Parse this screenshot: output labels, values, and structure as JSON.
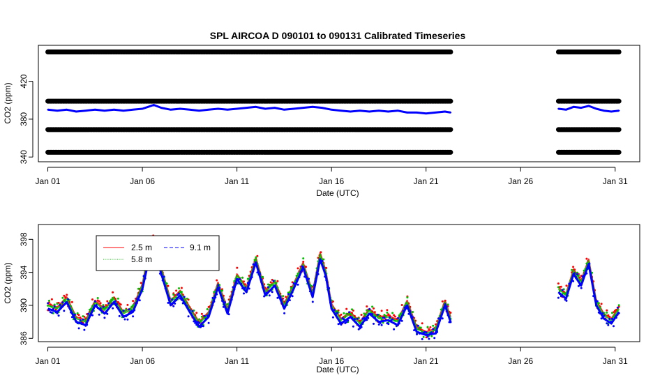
{
  "colors": {
    "background": "#ffffff",
    "ref_points": "#000000",
    "series_2_5m": "#ff0000",
    "series_5_8m": "#00c000",
    "series_9_1m": "#0000ff"
  },
  "chart_data": [
    {
      "type": "scatter",
      "title": "SPL   AIRCOA  D    090101  to  090131   Calibrated Timeseries",
      "xlabel": "Date (UTC)",
      "ylabel": "CO2 (ppm)",
      "x_ticks": [
        "Jan 01",
        "Jan 06",
        "Jan 11",
        "Jan 16",
        "Jan 21",
        "Jan 26",
        "Jan 31"
      ],
      "x_tick_values": [
        1,
        6,
        11,
        16,
        21,
        26,
        31
      ],
      "y_ticks": [
        "340",
        "380",
        "420"
      ],
      "y_tick_values": [
        340,
        380,
        420
      ],
      "xlim": [
        0.5,
        32.3
      ],
      "ylim": [
        335,
        458
      ],
      "legend": false,
      "grid": false,
      "reference_gases": {
        "values": [
          345,
          369,
          399,
          451
        ],
        "segments": [
          [
            1.0,
            22.3
          ],
          [
            28.0,
            31.2
          ]
        ]
      },
      "series": [
        {
          "color": "#0000ff",
          "segments": [
            {
              "x": [
                1.0,
                1.5,
                2.0,
                2.5,
                3.0,
                3.5,
                4.0,
                4.5,
                5.0,
                5.5,
                6.0,
                6.3,
                6.6,
                7.0,
                7.5,
                8.0,
                8.5,
                9.0,
                9.5,
                10.0,
                10.5,
                11.0,
                11.5,
                12.0,
                12.5,
                13.0,
                13.5,
                14.0,
                14.5,
                15.0,
                15.5,
                16.0,
                16.5,
                17.0,
                17.5,
                18.0,
                18.5,
                19.0,
                19.5,
                20.0,
                20.5,
                21.0,
                21.5,
                22.0,
                22.3
              ],
              "y": [
                390,
                389,
                390,
                388,
                389,
                390,
                389,
                390,
                389,
                390,
                391,
                393,
                395,
                392,
                390,
                391,
                390,
                389,
                390,
                391,
                390,
                391,
                392,
                393,
                391,
                392,
                390,
                391,
                392,
                393,
                392,
                390,
                389,
                388,
                389,
                388,
                389,
                388,
                389,
                387,
                387,
                386,
                387,
                388,
                387
              ]
            },
            {
              "x": [
                28.0,
                28.4,
                28.8,
                29.2,
                29.6,
                30.0,
                30.4,
                30.8,
                31.2
              ],
              "y": [
                391,
                390,
                393,
                392,
                394,
                391,
                389,
                388,
                389
              ]
            }
          ]
        }
      ]
    },
    {
      "type": "scatter",
      "title": "",
      "xlabel": "Date (UTC)",
      "ylabel": "CO2 (ppm)",
      "x_ticks": [
        "Jan 01",
        "Jan 06",
        "Jan 11",
        "Jan 16",
        "Jan 21",
        "Jan 26",
        "Jan 31"
      ],
      "x_tick_values": [
        1,
        6,
        11,
        16,
        21,
        26,
        31
      ],
      "y_ticks": [
        "386",
        "390",
        "394",
        "398"
      ],
      "y_tick_values": [
        386,
        390,
        394,
        398
      ],
      "xlim": [
        0.5,
        32.3
      ],
      "ylim": [
        385.6,
        399.8
      ],
      "legend": "top-left",
      "grid": false,
      "series": [
        {
          "name": "2.5 m",
          "color": "#ff0000",
          "x": [
            1.0,
            1.5,
            2.0,
            2.5,
            3.0,
            3.5,
            4.0,
            4.5,
            5.0,
            5.5,
            6.0,
            6.5,
            6.9,
            7.5,
            8.0,
            8.5,
            9.0,
            9.5,
            10.0,
            10.5,
            11.0,
            11.5,
            12.0,
            12.5,
            13.0,
            13.5,
            14.0,
            14.5,
            15.0,
            15.4,
            15.7,
            16.0,
            16.5,
            17.0,
            17.5,
            18.0,
            18.5,
            19.0,
            19.5,
            20.0,
            20.5,
            21.0,
            21.5,
            22.0,
            22.3,
            28.0,
            28.4,
            28.8,
            29.2,
            29.6,
            30.0,
            30.4,
            30.8,
            31.2
          ],
          "y": [
            390.2,
            389.8,
            391.0,
            388.6,
            388.2,
            390.6,
            389.6,
            391.0,
            389.2,
            389.8,
            392.6,
            398.4,
            395.4,
            390.6,
            391.8,
            389.8,
            388.0,
            389.2,
            392.8,
            389.6,
            393.8,
            392.2,
            395.8,
            391.8,
            393.0,
            390.2,
            392.6,
            395.2,
            391.6,
            396.4,
            394.2,
            390.2,
            388.4,
            389.2,
            388.0,
            389.6,
            388.6,
            388.8,
            388.2,
            390.6,
            387.4,
            386.8,
            387.2,
            390.6,
            388.6,
            392.2,
            391.4,
            394.4,
            393.0,
            395.6,
            390.6,
            389.0,
            388.4,
            389.8
          ]
        },
        {
          "name": "5.8 m",
          "color": "#00c000",
          "x": [
            1.0,
            1.5,
            2.0,
            2.5,
            3.0,
            3.5,
            4.0,
            4.5,
            5.0,
            5.5,
            6.0,
            6.5,
            6.9,
            7.5,
            8.0,
            8.5,
            9.0,
            9.5,
            10.0,
            10.5,
            11.0,
            11.5,
            12.0,
            12.5,
            13.0,
            13.5,
            14.0,
            14.5,
            15.0,
            15.4,
            15.7,
            16.0,
            16.5,
            17.0,
            17.5,
            18.0,
            18.5,
            19.0,
            19.5,
            20.0,
            20.5,
            21.0,
            21.5,
            22.0,
            22.3,
            28.0,
            28.4,
            28.8,
            29.2,
            29.6,
            30.0,
            30.4,
            30.8,
            31.2
          ],
          "y": [
            390.0,
            389.6,
            390.8,
            388.4,
            388.0,
            390.4,
            389.4,
            390.8,
            389.0,
            389.6,
            392.4,
            398.0,
            395.2,
            390.4,
            391.6,
            389.6,
            387.8,
            389.0,
            392.6,
            389.4,
            393.6,
            392.0,
            395.6,
            391.6,
            392.8,
            390.0,
            392.4,
            395.0,
            391.4,
            396.2,
            394.0,
            390.0,
            388.2,
            389.0,
            387.8,
            389.4,
            388.4,
            388.6,
            388.0,
            390.4,
            387.2,
            386.6,
            387.0,
            390.4,
            388.4,
            392.0,
            391.2,
            394.2,
            392.8,
            395.4,
            390.4,
            388.8,
            388.2,
            389.6
          ]
        },
        {
          "name": "9.1 m",
          "color": "#0000ff",
          "x": [
            1.0,
            1.5,
            2.0,
            2.5,
            3.0,
            3.5,
            4.0,
            4.5,
            5.0,
            5.5,
            6.0,
            6.5,
            6.9,
            7.5,
            8.0,
            8.5,
            9.0,
            9.5,
            10.0,
            10.5,
            11.0,
            11.5,
            12.0,
            12.5,
            13.0,
            13.5,
            14.0,
            14.5,
            15.0,
            15.4,
            15.7,
            16.0,
            16.5,
            17.0,
            17.5,
            18.0,
            18.5,
            19.0,
            19.5,
            20.0,
            20.5,
            21.0,
            21.5,
            22.0,
            22.3,
            28.0,
            28.4,
            28.8,
            29.2,
            29.6,
            30.0,
            30.4,
            30.8,
            31.2
          ],
          "y": [
            389.6,
            389.2,
            390.4,
            388.0,
            387.6,
            390.0,
            389.0,
            390.4,
            388.6,
            389.2,
            392.0,
            397.2,
            394.6,
            390.0,
            391.2,
            389.2,
            387.4,
            388.6,
            392.2,
            389.0,
            393.2,
            391.6,
            395.2,
            391.2,
            392.4,
            389.6,
            392.0,
            394.6,
            391.0,
            395.6,
            393.6,
            389.6,
            387.8,
            388.6,
            387.4,
            389.0,
            388.0,
            388.2,
            387.6,
            390.0,
            386.8,
            386.4,
            386.6,
            390.0,
            388.0,
            391.6,
            390.8,
            393.8,
            392.4,
            395.0,
            390.0,
            388.4,
            387.8,
            389.2
          ]
        }
      ]
    }
  ]
}
